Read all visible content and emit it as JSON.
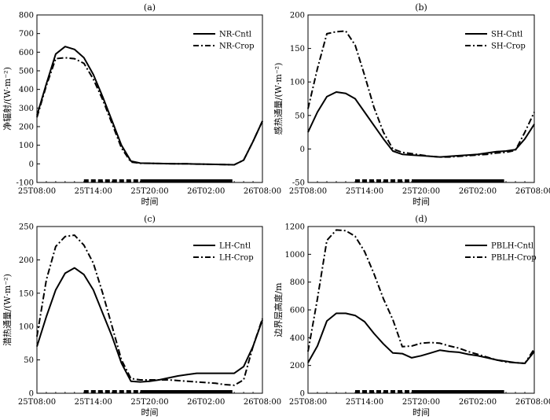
{
  "chart_data": [
    {
      "id": "a",
      "type": "line",
      "title": "(a)",
      "xlabel": "时间",
      "ylabel": "净辐射/(W·m⁻²)",
      "ylim": [
        -100,
        800
      ],
      "yticks": [
        -100,
        0,
        100,
        200,
        300,
        400,
        500,
        600,
        700,
        800
      ],
      "xticks": [
        "25T08:00",
        "25T14:00",
        "25T20:00",
        "26T02:00",
        "26T08:00"
      ],
      "legend_position": "top-right",
      "series": [
        {
          "name": "NR-Cntl",
          "style": "solid",
          "x": [
            0,
            1,
            2,
            3,
            4,
            5,
            6,
            7,
            8,
            9,
            10,
            11,
            12,
            13,
            14,
            15,
            16,
            17,
            18,
            19,
            20,
            21,
            22,
            23,
            24
          ],
          "y": [
            260,
            430,
            590,
            630,
            615,
            570,
            480,
            360,
            230,
            100,
            15,
            4,
            3,
            2,
            1,
            0,
            0,
            -1,
            -2,
            -3,
            -4,
            -5,
            20,
            120,
            230
          ]
        },
        {
          "name": "NR-Crop",
          "style": "dashdot",
          "x": [
            0,
            1,
            2,
            3,
            4,
            5,
            6,
            7,
            8,
            9,
            10,
            11,
            12,
            13,
            14,
            15,
            16,
            17,
            18,
            19,
            20,
            21,
            22,
            23,
            24
          ],
          "y": [
            250,
            420,
            565,
            570,
            565,
            540,
            455,
            345,
            215,
            85,
            10,
            3,
            3,
            2,
            1,
            0,
            0,
            -1,
            -2,
            -3,
            -4,
            -5,
            20,
            120,
            230
          ]
        }
      ]
    },
    {
      "id": "b",
      "type": "line",
      "title": "(b)",
      "xlabel": "时间",
      "ylabel": "感热通量/(W·m⁻²)",
      "ylim": [
        -50,
        200
      ],
      "yticks": [
        -50,
        0,
        50,
        100,
        150,
        200
      ],
      "xticks": [
        "25T08:00",
        "25T14:00",
        "25T20:00",
        "26T02:00",
        "26T08:00"
      ],
      "legend_position": "top-right",
      "series": [
        {
          "name": "SH-Cntl",
          "style": "solid",
          "x": [
            0,
            1,
            2,
            3,
            4,
            5,
            6,
            7,
            8,
            9,
            10,
            11,
            12,
            13,
            14,
            15,
            16,
            17,
            18,
            19,
            20,
            21,
            22,
            23,
            24
          ],
          "y": [
            25,
            55,
            78,
            85,
            83,
            75,
            55,
            35,
            15,
            -3,
            -8,
            -9,
            -10,
            -11,
            -12,
            -11,
            -10,
            -9,
            -8,
            -6,
            -4,
            -3,
            -1,
            15,
            37
          ]
        },
        {
          "name": "SH-Crop",
          "style": "dashdot",
          "x": [
            0,
            1,
            2,
            3,
            4,
            5,
            6,
            7,
            8,
            9,
            10,
            11,
            12,
            13,
            14,
            15,
            16,
            17,
            18,
            19,
            20,
            21,
            22,
            23,
            24
          ],
          "y": [
            60,
            120,
            172,
            175,
            176,
            155,
            110,
            62,
            25,
            0,
            -5,
            -7,
            -9,
            -11,
            -12,
            -12,
            -11,
            -10,
            -9,
            -8,
            -6,
            -5,
            -2,
            25,
            55
          ]
        }
      ]
    },
    {
      "id": "c",
      "type": "line",
      "title": "(c)",
      "xlabel": "时间",
      "ylabel": "潜热通量/(W·m⁻²)",
      "ylim": [
        0,
        250
      ],
      "yticks": [
        0,
        50,
        100,
        150,
        200,
        250
      ],
      "xticks": [
        "25T08:00",
        "25T14:00",
        "25T20:00",
        "26T02:00",
        "26T08:00"
      ],
      "legend_position": "top-right",
      "series": [
        {
          "name": "LH-Cntl",
          "style": "solid",
          "x": [
            0,
            1,
            2,
            3,
            4,
            5,
            6,
            7,
            8,
            9,
            10,
            11,
            12,
            13,
            14,
            15,
            16,
            17,
            18,
            19,
            20,
            21,
            22,
            23,
            24
          ],
          "y": [
            70,
            115,
            155,
            180,
            188,
            178,
            155,
            120,
            85,
            45,
            18,
            17,
            18,
            20,
            23,
            26,
            28,
            30,
            30,
            30,
            30,
            30,
            40,
            70,
            110
          ]
        },
        {
          "name": "LH-Crop",
          "style": "dashdot",
          "x": [
            0,
            1,
            2,
            3,
            4,
            5,
            6,
            7,
            8,
            9,
            10,
            11,
            12,
            13,
            14,
            15,
            16,
            17,
            18,
            19,
            20,
            21,
            22,
            23,
            24
          ],
          "y": [
            85,
            170,
            220,
            235,
            237,
            222,
            195,
            150,
            100,
            50,
            22,
            20,
            20,
            20,
            20,
            19,
            18,
            17,
            16,
            15,
            13,
            12,
            20,
            70,
            112
          ]
        }
      ]
    },
    {
      "id": "d",
      "type": "line",
      "title": "(d)",
      "xlabel": "时间",
      "ylabel": "边界层高度/m",
      "ylim": [
        0,
        1200
      ],
      "yticks": [
        0,
        200,
        400,
        600,
        800,
        1000,
        1200
      ],
      "xticks": [
        "25T08:00",
        "25T14:00",
        "25T20:00",
        "26T02:00",
        "26T08:00"
      ],
      "legend_position": "top-right",
      "series": [
        {
          "name": "PBLH-Cntl",
          "style": "solid",
          "x": [
            0,
            1,
            2,
            3,
            4,
            5,
            6,
            7,
            8,
            9,
            10,
            11,
            12,
            13,
            14,
            15,
            16,
            17,
            18,
            19,
            20,
            21,
            22,
            23,
            24
          ],
          "y": [
            220,
            340,
            520,
            575,
            575,
            560,
            515,
            430,
            355,
            290,
            285,
            255,
            270,
            290,
            310,
            300,
            295,
            280,
            270,
            255,
            240,
            230,
            220,
            215,
            300
          ]
        },
        {
          "name": "PBLH-Crop",
          "style": "dashdot",
          "x": [
            0,
            1,
            2,
            3,
            4,
            5,
            6,
            7,
            8,
            9,
            10,
            11,
            12,
            13,
            14,
            15,
            16,
            17,
            18,
            19,
            20,
            21,
            22,
            23,
            24
          ],
          "y": [
            300,
            680,
            1100,
            1175,
            1170,
            1130,
            1020,
            860,
            680,
            530,
            335,
            340,
            360,
            365,
            360,
            340,
            325,
            300,
            280,
            260,
            240,
            225,
            220,
            215,
            320
          ]
        }
      ]
    }
  ]
}
